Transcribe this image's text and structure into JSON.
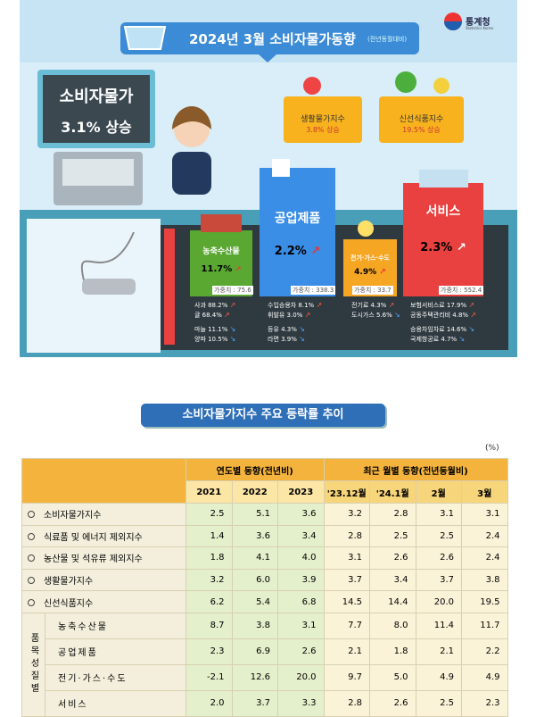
{
  "header": {
    "title": "2024년 3월 소비자물가동향",
    "subtitle": "(전년동월대비)",
    "logo": "통계청",
    "logo_en": "Statistics Korea"
  },
  "headline": {
    "label": "소비자물가",
    "value": "3.1% 상승"
  },
  "baskets": [
    {
      "label": "생활물가지수",
      "value": "3.8% 상승"
    },
    {
      "label": "신선식품지수",
      "value": "19.5% 상승"
    }
  ],
  "categories": [
    {
      "name": "농축수산물",
      "change": "11.7%",
      "weight": "가중치 : 75.6",
      "items": [
        "사과 88.2%",
        "귤 68.4%",
        "마늘 11.1%",
        "양파 10.5%"
      ]
    },
    {
      "name": "공업제품",
      "change": "2.2%",
      "weight": "가중치 : 338.3",
      "items": [
        "수입승용차 8.1%",
        "휘발유 3.0%",
        "등유 4.3%",
        "라면 3.9%"
      ]
    },
    {
      "name": "전기·가스·수도",
      "change": "4.9%",
      "weight": "가중치 : 33.7",
      "items": [
        "전기료 4.3%",
        "도시가스 5.6%"
      ]
    },
    {
      "name": "서비스",
      "change": "2.3%",
      "weight": "가중치 : 552.4",
      "items": [
        "보험서비스료 17.9%",
        "공동주택관리비 4.8%",
        "승용차임차료 14.6%",
        "국제항공료 4.7%"
      ]
    }
  ],
  "table": {
    "title": "소비자물가지수 주요 등락률 추이",
    "unit": "(%)",
    "group_headers": [
      "연도별 동향(전년비)",
      "최근 월별 동향(전년동월비)"
    ],
    "columns": [
      "2021",
      "2022",
      "2023",
      "'23.12월",
      "'24.1월",
      "2월",
      "3월"
    ],
    "group_label": "품목성질별",
    "rows": [
      {
        "label": "소비자물가지수",
        "values": [
          "2.5",
          "5.1",
          "3.6",
          "3.2",
          "2.8",
          "3.1",
          "3.1"
        ]
      },
      {
        "label": "식료품 및 에너지 제외지수",
        "values": [
          "1.4",
          "3.6",
          "3.4",
          "2.8",
          "2.5",
          "2.5",
          "2.4"
        ]
      },
      {
        "label": "농산물 및 석유류 제외지수",
        "values": [
          "1.8",
          "4.1",
          "4.0",
          "3.1",
          "2.6",
          "2.6",
          "2.4"
        ]
      },
      {
        "label": "생활물가지수",
        "values": [
          "3.2",
          "6.0",
          "3.9",
          "3.7",
          "3.4",
          "3.7",
          "3.8"
        ]
      },
      {
        "label": "신선식품지수",
        "values": [
          "6.2",
          "5.4",
          "6.8",
          "14.5",
          "14.4",
          "20.0",
          "19.5"
        ]
      },
      {
        "label": "농축수산물",
        "values": [
          "8.7",
          "3.8",
          "3.1",
          "7.7",
          "8.0",
          "11.4",
          "11.7"
        ]
      },
      {
        "label": "공업제품",
        "values": [
          "2.3",
          "6.9",
          "2.6",
          "2.1",
          "1.8",
          "2.1",
          "2.2"
        ]
      },
      {
        "label": "전기·가스·수도",
        "values": [
          "-2.1",
          "12.6",
          "20.0",
          "9.7",
          "5.0",
          "4.9",
          "4.9"
        ]
      },
      {
        "label": "서비스",
        "values": [
          "2.0",
          "3.7",
          "3.3",
          "2.8",
          "2.6",
          "2.5",
          "2.3"
        ]
      }
    ]
  }
}
